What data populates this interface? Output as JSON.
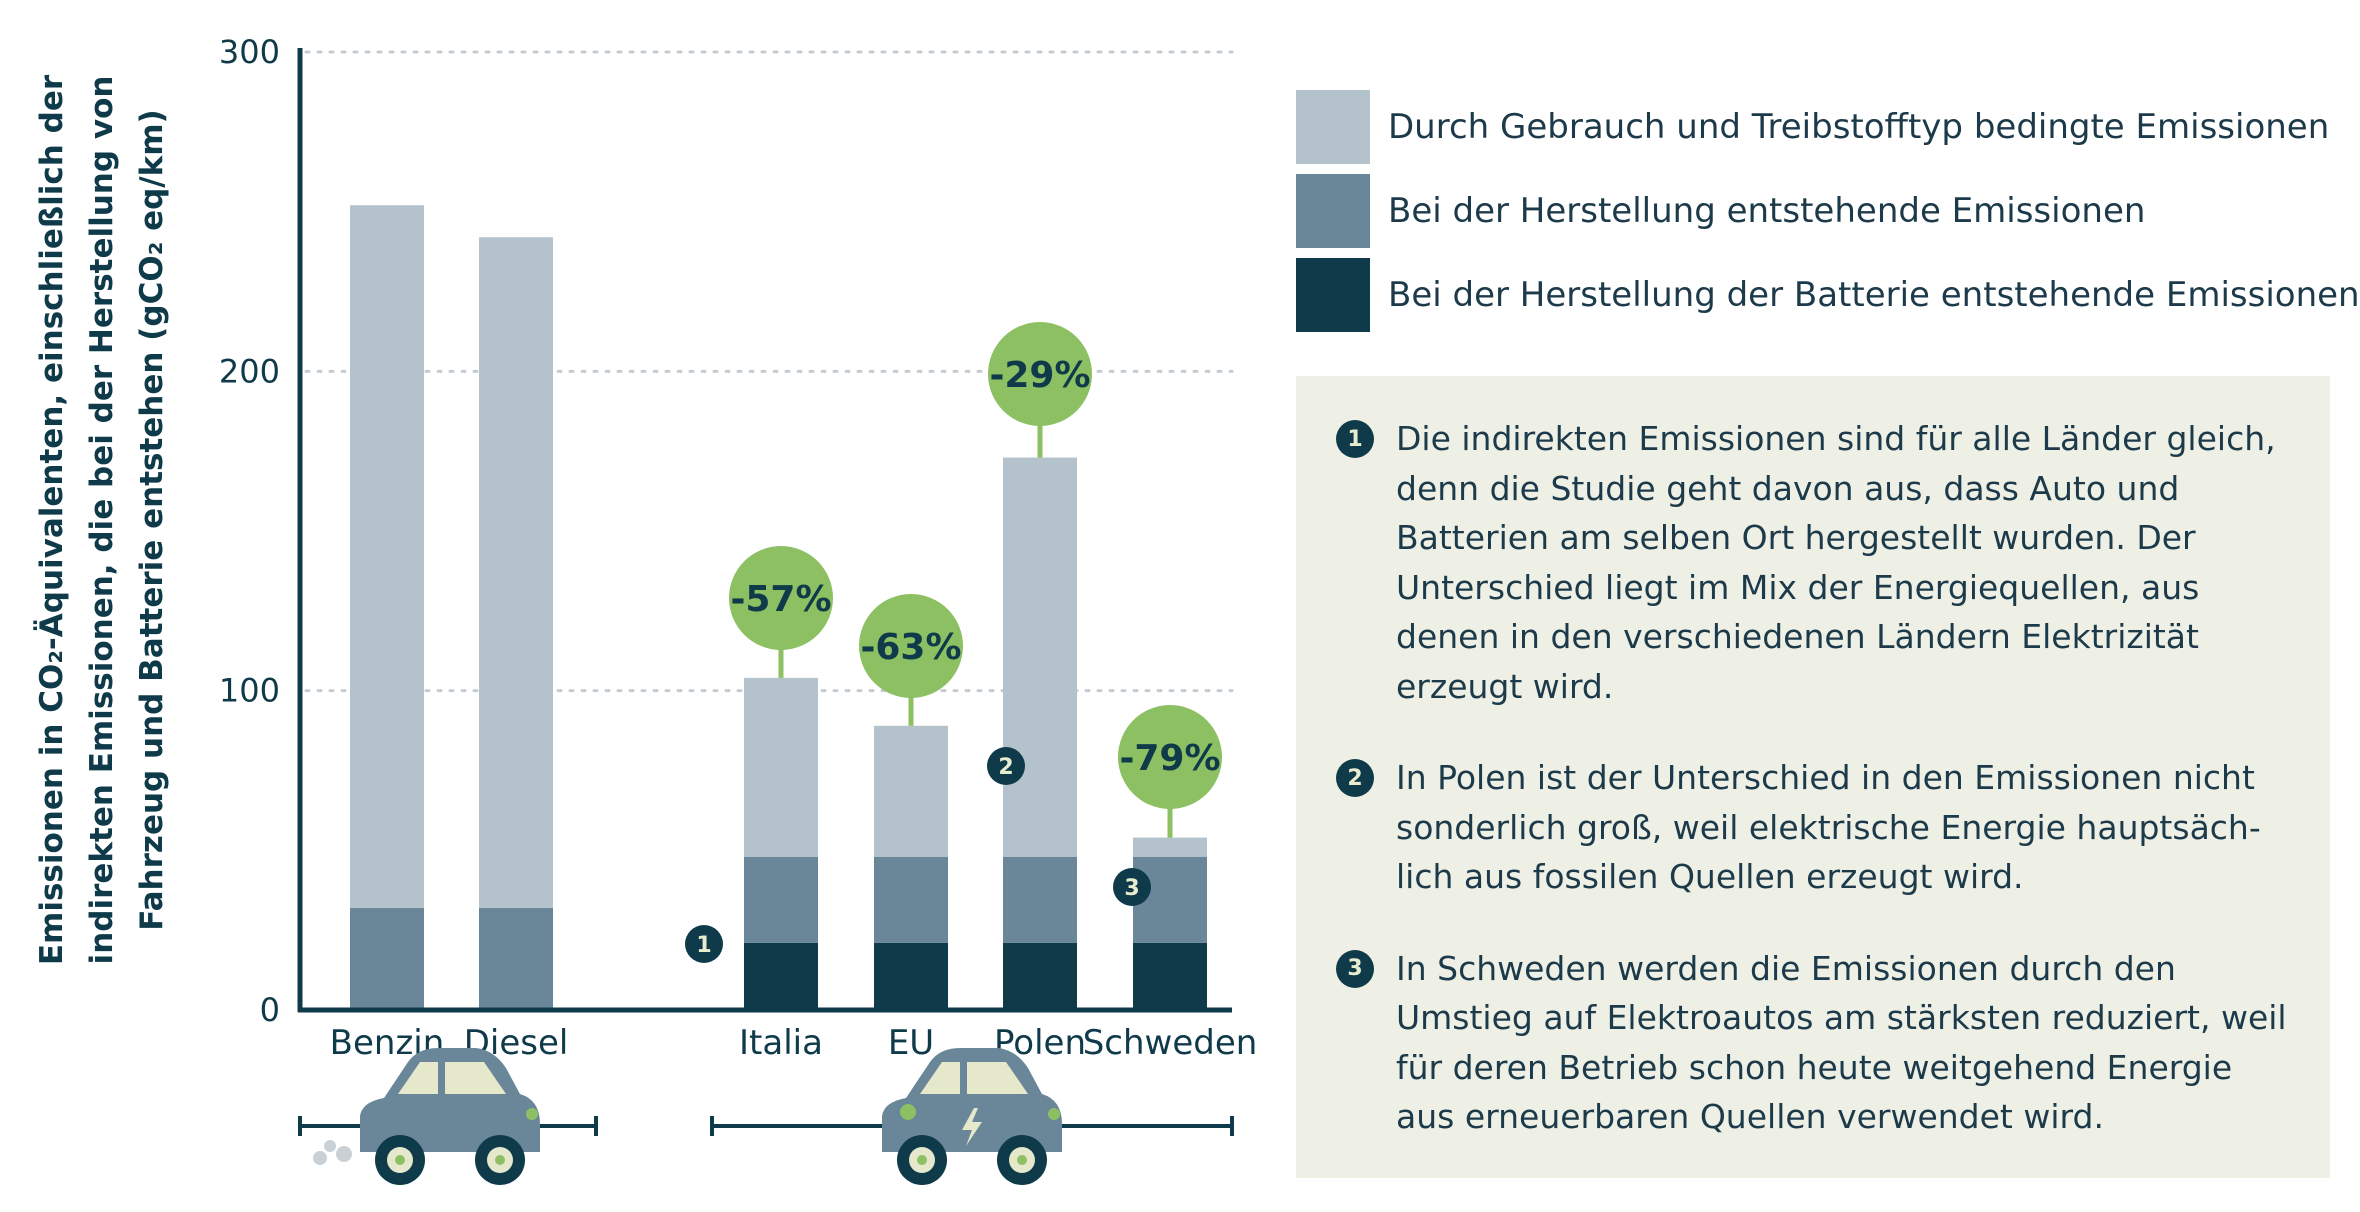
{
  "chart_data": {
    "type": "bar",
    "stacked": true,
    "ylabel_lines": [
      "Emissionen in CO₂-Äquivalenten,  einschließlich der",
      "indirekten Emissionen, die bei der Herstellung von",
      "Fahrzeug und  Batterie entstehen (gCO₂ eq/km)"
    ],
    "ylim": [
      0,
      300
    ],
    "yticks": [
      0,
      100,
      200,
      300
    ],
    "grid": true,
    "categories": [
      "Benzin",
      "Diesel",
      "Italia",
      "EU",
      "Polen",
      "Schweden"
    ],
    "series": [
      {
        "name": "Bei der Herstellung der Batterie entstehende Emissionen",
        "color": "#0f3a4a",
        "values": [
          0,
          0,
          21,
          21,
          21,
          21
        ]
      },
      {
        "name": "Bei der Herstellung entstehende Emissionen",
        "color": "#6a8799",
        "values": [
          32,
          32,
          27,
          27,
          27,
          27
        ]
      },
      {
        "name": "Durch Gebrauch und Treibstofftyp bedingte Emissionen",
        "color": "#b4c3cb",
        "values": [
          220,
          210,
          56,
          41,
          125,
          6
        ]
      }
    ],
    "reduction_badges": [
      {
        "category": "Italia",
        "label": "-57%"
      },
      {
        "category": "EU",
        "label": "-63%"
      },
      {
        "category": "Polen",
        "label": "-29%"
      },
      {
        "category": "Schweden",
        "label": "-79%"
      }
    ],
    "note_markers": [
      {
        "label": "1",
        "near": "Italia"
      },
      {
        "label": "2",
        "near": "Polen"
      },
      {
        "label": "3",
        "near": "Schweden"
      }
    ],
    "groups": [
      {
        "kind": "verbrenner",
        "icon": "combustion-car-icon",
        "categories": [
          "Benzin",
          "Diesel"
        ]
      },
      {
        "kind": "elektro",
        "icon": "electric-car-icon",
        "categories": [
          "Italia",
          "EU",
          "Polen",
          "Schweden"
        ]
      }
    ],
    "legend_placement": "top-right",
    "badge_color": "#8cc063"
  },
  "legend": [
    {
      "label": "Durch Gebrauch und Treibstofftyp bedingte Emissionen",
      "color": "#b4c3cb"
    },
    {
      "label": "Bei der Herstellung entstehende Emissionen",
      "color": "#6a8799"
    },
    {
      "label": "Bei der Herstellung der Batterie entstehende Emissionen",
      "color": "#0f3a4a"
    }
  ],
  "notes": [
    {
      "num": "1",
      "text": "Die indirekten Emissionen sind für alle Länder gleich, denn die Studie geht davon aus, dass Auto und Batterien am selben Ort hergestellt wurden. Der Unterschied liegt im Mix der Energiequellen, aus denen in den verschiedenen Ländern Elektrizität erzeugt wird."
    },
    {
      "num": "2",
      "text": "In Polen ist der Unterschied in den Emissionen nicht sonderlich groß, weil elektrische Energie hauptsäch-lich aus fossilen Quellen erzeugt wird."
    },
    {
      "num": "3",
      "text": "In Schweden werden die Emissionen durch den Umstieg auf Elektroautos  am stärksten reduziert, weil für deren Betrieb schon heute weitgehend Energie aus erneuerbaren Quellen verwendet wird."
    }
  ]
}
